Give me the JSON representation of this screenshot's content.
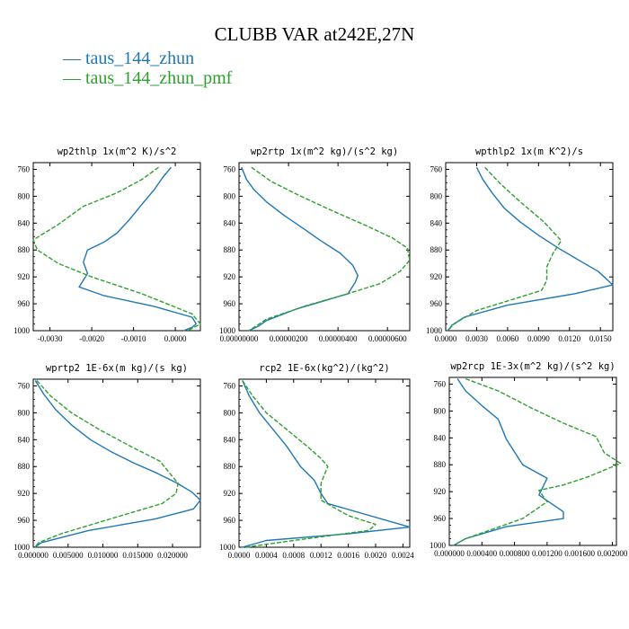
{
  "title": "CLUBB VAR at242E,27N",
  "legend": [
    {
      "label": "— taus_144_zhun",
      "color": "#1f77b4"
    },
    {
      "label": "— taus_144_zhun_pmf",
      "color": "#2ca02c"
    }
  ],
  "chart_data": [
    {
      "type": "line",
      "title": "wp2thlp  1x(m^2 K)/s^2",
      "xlim": [
        -0.0034,
        0.0006
      ],
      "ylim": [
        1000,
        750
      ],
      "xticks": [
        -0.003,
        -0.002,
        -0.001,
        0.0
      ],
      "xticklabels": [
        "-0.0030",
        "-0.0020",
        "-0.0010",
        "0.0000"
      ],
      "yticks": [
        760,
        800,
        840,
        880,
        920,
        960,
        1000
      ],
      "yticklabels": [
        "760",
        "800",
        "840",
        "880",
        "920",
        "960",
        "1000"
      ],
      "series": [
        {
          "name": "taus_144_zhun",
          "color": "#1f77b4",
          "dashed": false,
          "x": [
            -0.0001,
            -0.0003,
            -0.0005,
            -0.0008,
            -0.0011,
            -0.0014,
            -0.0017,
            -0.0021,
            -0.0022,
            -0.0021,
            -0.0023,
            -0.0017,
            -0.0005,
            0.0004,
            0.0005,
            0.0004,
            0.0002
          ],
          "y": [
            757,
            772,
            790,
            812,
            835,
            855,
            868,
            880,
            898,
            915,
            935,
            948,
            964,
            980,
            990,
            995,
            1000
          ]
        },
        {
          "name": "taus_144_zhun_pmf",
          "color": "#2ca02c",
          "dashed": true,
          "x": [
            -0.0004,
            -0.0008,
            -0.0014,
            -0.0022,
            -0.0028,
            -0.0034,
            -0.0033,
            -0.0028,
            -0.002,
            -0.0008,
            0.0004,
            0.0006,
            0.0003
          ],
          "y": [
            757,
            775,
            795,
            815,
            842,
            865,
            880,
            900,
            920,
            945,
            975,
            990,
            1000
          ]
        }
      ]
    },
    {
      "type": "line",
      "title": "wp2rtp  1x(m^2 kg)/(s^2 kg)",
      "xlim": [
        0.0,
        6.9e-06
      ],
      "ylim": [
        1000,
        750
      ],
      "xticks": [
        0.0,
        2e-06,
        4e-06,
        6e-06
      ],
      "xticklabels": [
        "0.00000000",
        "0.00000200",
        "0.00000400",
        "0.00000600"
      ],
      "yticks": [
        760,
        800,
        840,
        880,
        920,
        960,
        1000
      ],
      "yticklabels": [
        "760",
        "800",
        "840",
        "880",
        "920",
        "960",
        "1000"
      ],
      "series": [
        {
          "name": "taus_144_zhun",
          "color": "#1f77b4",
          "dashed": false,
          "x": [
            1e-07,
            3e-07,
            6e-07,
            1.1e-06,
            1.8e-06,
            2.6e-06,
            3.3e-06,
            4.1e-06,
            4.6e-06,
            4.8e-06,
            4.7e-06,
            4.4e-06,
            3.5e-06,
            2.3e-06,
            1.1e-06,
            8e-07,
            4e-07
          ],
          "y": [
            757,
            775,
            790,
            808,
            828,
            848,
            866,
            885,
            903,
            918,
            928,
            945,
            955,
            968,
            985,
            993,
            1000
          ]
        },
        {
          "name": "taus_144_zhun_pmf",
          "color": "#2ca02c",
          "dashed": true,
          "x": [
            5e-07,
            1.3e-06,
            2.5e-06,
            3.8e-06,
            5.1e-06,
            6.2e-06,
            6.8e-06,
            6.9e-06,
            6.5e-06,
            5.7e-06,
            4.4e-06,
            2.7e-06,
            1.1e-06,
            4e-07
          ],
          "y": [
            757,
            778,
            800,
            822,
            843,
            862,
            877,
            895,
            912,
            930,
            945,
            963,
            983,
            1000
          ]
        }
      ]
    },
    {
      "type": "line",
      "title": "wpthlp2  1x(m K^2)/s",
      "xlim": [
        0.0,
        0.0162
      ],
      "ylim": [
        1000,
        750
      ],
      "xticks": [
        0.0,
        0.003,
        0.006,
        0.009,
        0.012,
        0.015
      ],
      "xticklabels": [
        "0.0000",
        "0.0030",
        "0.0060",
        "0.0090",
        "0.0120",
        "0.0150"
      ],
      "yticks": [
        760,
        800,
        840,
        880,
        920,
        960,
        1000
      ],
      "yticklabels": [
        "760",
        "800",
        "840",
        "880",
        "920",
        "960",
        "1000"
      ],
      "series": [
        {
          "name": "taus_144_zhun",
          "color": "#1f77b4",
          "dashed": false,
          "x": [
            0.003,
            0.0036,
            0.0045,
            0.0057,
            0.0072,
            0.009,
            0.011,
            0.013,
            0.0148,
            0.0162,
            0.0125,
            0.006,
            0.0018,
            0.0006,
            0.0002
          ],
          "y": [
            757,
            775,
            795,
            818,
            838,
            858,
            878,
            896,
            912,
            932,
            945,
            962,
            980,
            992,
            1000
          ]
        },
        {
          "name": "taus_144_zhun_pmf",
          "color": "#2ca02c",
          "dashed": true,
          "x": [
            0.0038,
            0.0052,
            0.0072,
            0.0095,
            0.0112,
            0.0104,
            0.0098,
            0.0098,
            0.0093,
            0.0068,
            0.003,
            0.0008,
            0.0002
          ],
          "y": [
            757,
            780,
            808,
            838,
            866,
            885,
            905,
            925,
            940,
            952,
            970,
            990,
            1000
          ]
        }
      ]
    },
    {
      "type": "line",
      "title": "wprtp2  1E-6x(m kg)/(s kg)",
      "xlim": [
        0.0,
        0.024
      ],
      "ylim": [
        1000,
        750
      ],
      "xticks": [
        0.0,
        0.005,
        0.01,
        0.015,
        0.02
      ],
      "xticklabels": [
        "0.000000",
        "0.005000",
        "0.010000",
        "0.015000",
        "0.020000"
      ],
      "yticks": [
        760,
        800,
        840,
        880,
        920,
        960,
        1000
      ],
      "yticklabels": [
        "760",
        "800",
        "840",
        "880",
        "920",
        "960",
        "1000"
      ],
      "series": [
        {
          "name": "taus_144_zhun",
          "color": "#1f77b4",
          "dashed": false,
          "x": [
            0.0003,
            0.0015,
            0.0032,
            0.0055,
            0.0082,
            0.0112,
            0.0145,
            0.0178,
            0.0207,
            0.0228,
            0.024,
            0.023,
            0.0175,
            0.008,
            0.0012,
            0.0002
          ],
          "y": [
            752,
            772,
            795,
            818,
            840,
            858,
            875,
            890,
            905,
            918,
            930,
            943,
            958,
            975,
            993,
            1000
          ]
        },
        {
          "name": "taus_144_zhun_pmf",
          "color": "#2ca02c",
          "dashed": true,
          "x": [
            0.0005,
            0.0025,
            0.0055,
            0.0095,
            0.014,
            0.0182,
            0.0208,
            0.0205,
            0.0185,
            0.012,
            0.004,
            0.0008,
            0.0002
          ],
          "y": [
            752,
            775,
            800,
            825,
            850,
            872,
            905,
            920,
            935,
            955,
            980,
            993,
            1000
          ]
        }
      ]
    },
    {
      "type": "line",
      "title": "rcp2  1E-6x(kg^2)/(kg^2)",
      "xlim": [
        0.0,
        0.0025
      ],
      "ylim": [
        1000,
        750
      ],
      "xticks": [
        0.0,
        0.0004,
        0.0008,
        0.0012,
        0.0016,
        0.002,
        0.0024
      ],
      "xticklabels": [
        "0.0000",
        "0.0004",
        "0.0008",
        "0.0012",
        "0.0016",
        "0.0020",
        "0.0024"
      ],
      "yticks": [
        760,
        800,
        840,
        880,
        920,
        960,
        1000
      ],
      "yticklabels": [
        "760",
        "800",
        "840",
        "880",
        "920",
        "960",
        "1000"
      ],
      "series": [
        {
          "name": "taus_144_zhun",
          "color": "#1f77b4",
          "dashed": false,
          "x": [
            5e-05,
            0.00015,
            0.0003,
            0.0005,
            0.0007,
            0.0008,
            0.0009,
            0.0011,
            0.0012,
            0.0013,
            0.0025,
            0.0016,
            0.0004,
            5e-05
          ],
          "y": [
            752,
            775,
            800,
            825,
            850,
            865,
            880,
            900,
            920,
            935,
            970,
            980,
            990,
            1000
          ]
        },
        {
          "name": "taus_144_zhun_pmf",
          "color": "#2ca02c",
          "dashed": true,
          "x": [
            5e-05,
            0.0002,
            0.0004,
            0.0007,
            0.001,
            0.0012,
            0.0013,
            0.0012,
            0.0012,
            0.0016,
            0.002,
            0.0019,
            0.0008,
            0.0001
          ],
          "y": [
            752,
            775,
            800,
            825,
            850,
            868,
            880,
            905,
            930,
            953,
            966,
            975,
            990,
            1000
          ]
        }
      ]
    },
    {
      "type": "line",
      "title": "wp2rcp  1E-3x(m^2 kg)/(s^2 kg)",
      "xlim": [
        0.0,
        0.00205
      ],
      "ylim": [
        1000,
        750
      ],
      "xticks": [
        0.0,
        0.0004,
        0.0008,
        0.0012,
        0.0016,
        0.002
      ],
      "xticklabels": [
        "0.000000",
        "0.000400",
        "0.000800",
        "0.001200",
        "0.001600",
        "0.002000"
      ],
      "yticks": [
        760,
        800,
        840,
        880,
        920,
        960,
        1000
      ],
      "yticklabels": [
        "760",
        "800",
        "840",
        "880",
        "920",
        "960",
        "1000"
      ],
      "series": [
        {
          "name": "taus_144_zhun",
          "color": "#1f77b4",
          "dashed": false,
          "x": [
            0.0001,
            0.0002,
            0.0004,
            0.0006,
            0.0007,
            0.0009,
            0.0012,
            0.0011,
            0.0014,
            0.0014,
            0.0007,
            0.0002,
            5e-05
          ],
          "y": [
            752,
            770,
            792,
            812,
            842,
            880,
            900,
            925,
            950,
            960,
            972,
            990,
            1000
          ]
        },
        {
          "name": "taus_144_zhun_pmf",
          "color": "#2ca02c",
          "dashed": true,
          "x": [
            0.0002,
            0.0006,
            0.001,
            0.0014,
            0.0018,
            0.0019,
            0.0021,
            0.0017,
            0.0014,
            0.0011,
            0.0012,
            0.0009,
            0.0002,
            5e-05
          ],
          "y": [
            752,
            770,
            795,
            818,
            838,
            862,
            878,
            898,
            910,
            918,
            935,
            960,
            990,
            1000
          ]
        }
      ]
    }
  ]
}
